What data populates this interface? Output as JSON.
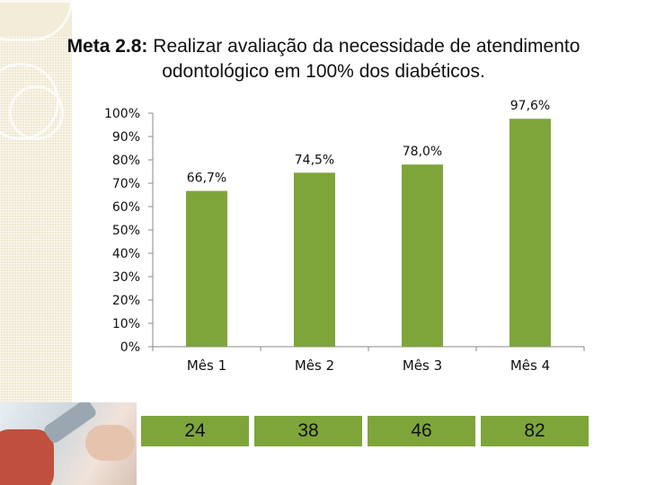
{
  "title": {
    "bold": "Meta 2.8:",
    "rest_line1": " Realizar avaliação da necessidade de atendimento",
    "line2": "odontológico em 100% dos diabéticos."
  },
  "chart_data": {
    "type": "bar",
    "categories": [
      "Mês 1",
      "Mês 2",
      "Mês 3",
      "Mês 4"
    ],
    "values": [
      66.7,
      74.5,
      78.0,
      97.6
    ],
    "data_labels": [
      "66,7%",
      "74,5%",
      "78,0%",
      "97,6%"
    ],
    "y_ticks": [
      "0%",
      "10%",
      "20%",
      "30%",
      "40%",
      "50%",
      "60%",
      "70%",
      "80%",
      "90%",
      "100%"
    ],
    "ylim": [
      0,
      100
    ],
    "bar_color": "#7ea53a",
    "grid": false,
    "legend": "none"
  },
  "counts": [
    "24",
    "38",
    "46",
    "82"
  ],
  "colors": {
    "cell_fill": "#7ea53a",
    "axis": "#888888"
  }
}
